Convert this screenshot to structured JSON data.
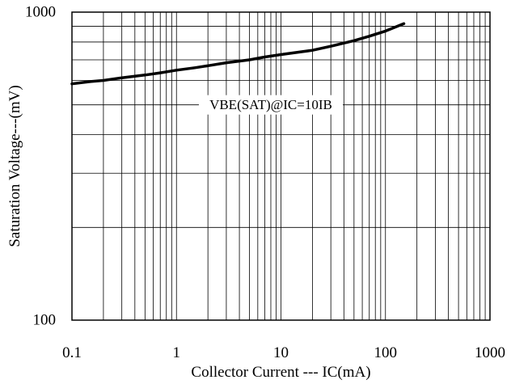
{
  "chart_data": {
    "type": "line",
    "title": "",
    "xlabel": "Collector Current --- IC(mA)",
    "ylabel": "Saturation Voltage---(mV)",
    "x_scale": "log",
    "y_scale": "log",
    "xlim": [
      0.1,
      1000
    ],
    "ylim": [
      100,
      1000
    ],
    "grid": true,
    "x_ticks": [
      {
        "value": 0.1,
        "label": "0.1"
      },
      {
        "value": 1,
        "label": "1"
      },
      {
        "value": 10,
        "label": "10"
      },
      {
        "value": 100,
        "label": "100"
      },
      {
        "value": 1000,
        "label": "1000"
      }
    ],
    "y_ticks": [
      {
        "value": 100,
        "label": "100"
      },
      {
        "value": 1000,
        "label": "1000"
      }
    ],
    "annotation": {
      "text": "VBE(SAT)@IC=10IB",
      "x": 8,
      "y": 500
    },
    "series": [
      {
        "color": "#000000",
        "x": [
          0.1,
          0.15,
          0.2,
          0.3,
          0.5,
          0.7,
          1,
          1.5,
          2,
          3,
          5,
          7,
          10,
          15,
          20,
          30,
          50,
          70,
          100,
          150
        ],
        "y": [
          585,
          595,
          600,
          612,
          625,
          635,
          648,
          660,
          670,
          685,
          700,
          715,
          728,
          742,
          752,
          775,
          808,
          835,
          868,
          917
        ]
      }
    ]
  }
}
